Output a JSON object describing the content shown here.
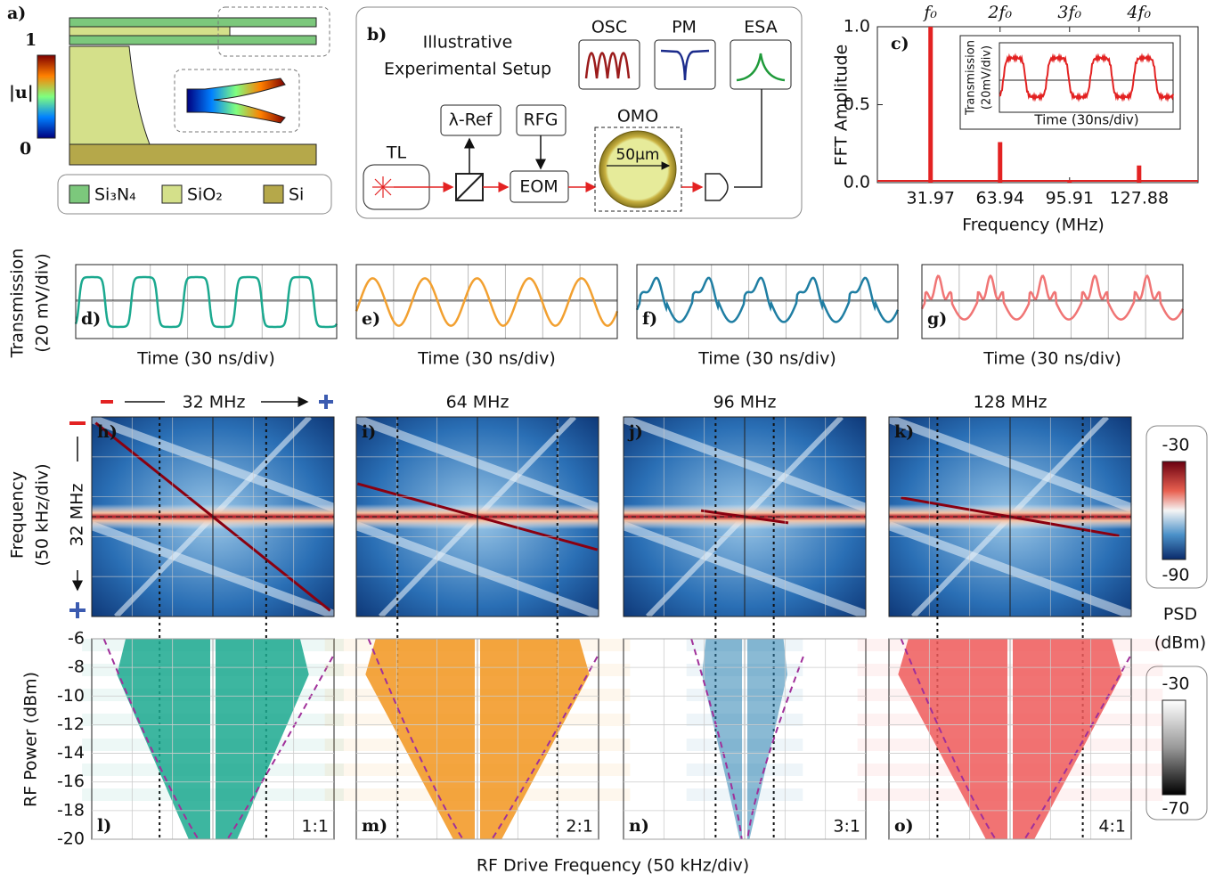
{
  "panel_a": {
    "label": "a)",
    "colorbar_label": "|u|",
    "colorbar_ticks": [
      1,
      0
    ],
    "legend": [
      "Si₃N₄",
      "SiO₂",
      "Si"
    ]
  },
  "panel_b": {
    "label": "b)",
    "title": [
      "Illustrative",
      "Experimental Setup"
    ],
    "instruments": [
      "OSC",
      "PM",
      "ESA"
    ],
    "components": {
      "laser": "TL",
      "reference": "λ-Ref",
      "generator": "RFG",
      "modulator": "EOM",
      "oscillator": "OMO",
      "ring": "50μm"
    }
  },
  "chart_data": {
    "type": "stem",
    "label": "c)",
    "ylabel": "FFT Amplitude",
    "xlabel": "Frequency (MHz)",
    "x": [
      31.97,
      63.94,
      95.91,
      127.88
    ],
    "values": [
      1.0,
      0.26,
      0.01,
      0.11
    ],
    "color": "#e32222",
    "harmonic_labels": [
      "f₀",
      "2f₀",
      "3f₀",
      "4f₀"
    ],
    "xlim": [
      7.5,
      155
    ],
    "xticks": [
      31.97,
      63.94,
      95.91,
      127.88
    ],
    "ylim": [
      0,
      1
    ],
    "yticks": [
      {
        "value": 0,
        "label": "0.0"
      },
      0.5,
      {
        "value": 1,
        "label": "1.0"
      }
    ],
    "inset": {
      "ylabel": [
        "Transmission",
        "(20mV/div)"
      ],
      "xlabel": "Time (30ns/div)"
    }
  },
  "waveforms": {
    "ylabel": [
      "Transmission",
      "(20 mV/div)"
    ],
    "xlabel": "Time (30 ns/div)",
    "panels": [
      {
        "label": "d)",
        "color": "#1ba98f"
      },
      {
        "label": "e)",
        "color": "#f2a030"
      },
      {
        "label": "f)",
        "color": "#1f7ea3"
      },
      {
        "label": "g)",
        "color": "#f07575"
      }
    ]
  },
  "spectrograms": {
    "ylabel": [
      "Frequency",
      "(50 kHz/div)"
    ],
    "center_label": "32 MHz",
    "panels": [
      {
        "label": "h)",
        "title": "32 MHz"
      },
      {
        "label": "i)",
        "title": "64 MHz"
      },
      {
        "label": "j)",
        "title": "96 MHz"
      },
      {
        "label": "k)",
        "title": "128 MHz"
      }
    ],
    "colorbar_label": [
      "PSD",
      "(dBm)"
    ],
    "colorbar_ticks": [
      -30,
      -90
    ]
  },
  "power_maps": {
    "ylabel": "RF Power (dBm)",
    "xlabel": "RF Drive Frequency (50 kHz/div)",
    "ylim": [
      -20,
      -6
    ],
    "yticks": [
      -6,
      -8,
      -10,
      -12,
      -14,
      -16,
      -18,
      -20
    ],
    "panels": [
      {
        "label": "l)",
        "ratio": "1:1",
        "color": "#1ba98f"
      },
      {
        "label": "m)",
        "ratio": "2:1",
        "color": "#f2951f"
      },
      {
        "label": "n)",
        "ratio": "3:1",
        "color": "#2a82b0"
      },
      {
        "label": "o)",
        "ratio": "4:1",
        "color": "#ee5a5a"
      }
    ],
    "colorbar_ticks": [
      -30,
      -70
    ]
  }
}
